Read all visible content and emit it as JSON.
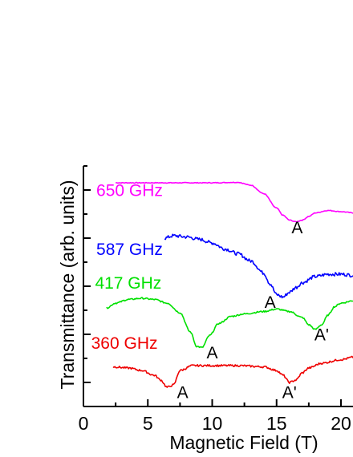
{
  "chart_data": {
    "type": "line",
    "title": "",
    "xlabel": "Magnetic Field (T)",
    "ylabel": "Transmittance (arb. units)",
    "xlim": [
      0,
      21
    ],
    "x_ticks": [
      "0",
      "5",
      "10",
      "15",
      "20"
    ],
    "grid": false,
    "series": [
      {
        "name": "650 GHz",
        "color": "#ff00ff",
        "x": [
          2.5,
          5,
          8,
          10,
          12,
          13,
          14,
          15,
          15.5,
          16,
          16.5,
          17,
          17.5,
          18,
          19,
          20,
          21
        ],
        "y": [
          8.3,
          8.3,
          8.3,
          8.3,
          8.32,
          8.2,
          7.85,
          7.25,
          6.95,
          6.75,
          6.68,
          6.75,
          6.9,
          7.05,
          7.15,
          7.1,
          7.05
        ]
      },
      {
        "name": "587 GHz",
        "color": "#0000ff",
        "x": [
          6.3,
          7,
          8,
          9,
          10,
          11,
          12,
          13,
          14,
          14.5,
          15,
          15.5,
          16,
          16.5,
          17,
          18,
          19,
          20,
          21
        ],
        "y": [
          6.0,
          6.1,
          6.05,
          5.95,
          5.8,
          5.55,
          5.35,
          5.05,
          4.55,
          4.1,
          3.65,
          3.55,
          3.75,
          3.95,
          4.15,
          4.4,
          4.5,
          4.5,
          4.45
        ]
      },
      {
        "name": "417 GHz",
        "color": "#00e000",
        "x": [
          1.8,
          2.5,
          3.5,
          4.5,
          5.5,
          6.5,
          7.5,
          8.3,
          8.8,
          9.2,
          9.8,
          10.5,
          11.5,
          12.5,
          14,
          15,
          16,
          17,
          17.5,
          18,
          18.5,
          19,
          19.5,
          20,
          21
        ],
        "y": [
          3.1,
          3.3,
          3.45,
          3.5,
          3.45,
          3.3,
          2.9,
          2.1,
          1.5,
          1.45,
          1.95,
          2.45,
          2.75,
          2.85,
          2.95,
          3.05,
          2.95,
          2.7,
          2.4,
          2.2,
          2.4,
          2.8,
          3.15,
          3.3,
          3.4
        ]
      },
      {
        "name": "360 GHz",
        "color": "#ee0000",
        "x": [
          2.3,
          3.5,
          4.5,
          5.5,
          6,
          6.5,
          7,
          7.5,
          8.5,
          10,
          12,
          14,
          15,
          15.5,
          16,
          16.5,
          17,
          17.5,
          18.5,
          20,
          21
        ],
        "y": [
          0.65,
          0.6,
          0.5,
          0.3,
          0.1,
          -0.2,
          -0.1,
          0.5,
          0.7,
          0.7,
          0.7,
          0.65,
          0.5,
          0.3,
          0.0,
          0.1,
          0.4,
          0.6,
          0.8,
          0.95,
          1.05
        ]
      }
    ],
    "annotations": [
      {
        "text": "A",
        "x": 16.6,
        "y": 6.2
      },
      {
        "text": "A",
        "x": 14.5,
        "y": 3.1
      },
      {
        "text": "A",
        "x": 10.0,
        "y": 1.0
      },
      {
        "text": "A'",
        "x": 18.5,
        "y": 1.75
      },
      {
        "text": "A",
        "x": 7.7,
        "y": -0.65
      },
      {
        "text": "A'",
        "x": 16.0,
        "y": -0.65
      }
    ],
    "series_label_positions": [
      {
        "series": "650 GHz",
        "x": 1.0,
        "y": 7.75
      },
      {
        "series": "587 GHz",
        "x": 1.0,
        "y": 5.3
      },
      {
        "series": "417 GHz",
        "x": 0.9,
        "y": 3.9
      },
      {
        "series": "360 GHz",
        "x": 0.6,
        "y": 1.4
      }
    ]
  }
}
